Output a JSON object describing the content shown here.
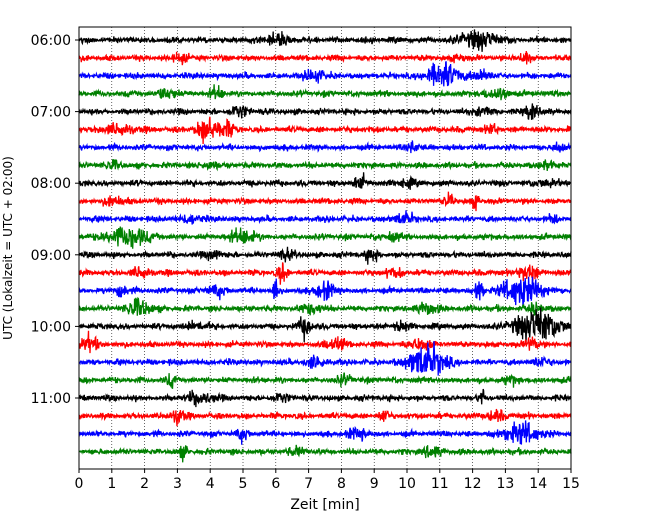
{
  "chart_data": {
    "type": "line",
    "title": "",
    "xlabel": "Zeit  [min]",
    "ylabel": "UTC (Lokalzeit = UTC + 02:00)",
    "xlim": [
      0,
      15
    ],
    "x_ticks": [
      "0",
      "1",
      "2",
      "3",
      "4",
      "5",
      "6",
      "7",
      "8",
      "9",
      "10",
      "11",
      "12",
      "13",
      "14",
      "15"
    ],
    "y_ticks": [
      "06:00",
      "07:00",
      "08:00",
      "09:00",
      "10:00",
      "11:00"
    ],
    "grid": "vertical dotted at each minute",
    "trace_colors": [
      "#000000",
      "#ff0000",
      "#0000ff",
      "#008000"
    ],
    "traces": [
      {
        "start": "06:00",
        "color": "#000000",
        "events": [
          {
            "t": 6.0,
            "a": 0.35,
            "w": 0.4
          },
          {
            "t": 12.2,
            "a": 0.5,
            "w": 0.6
          }
        ]
      },
      {
        "start": "06:15",
        "color": "#ff0000",
        "events": [
          {
            "t": 3.1,
            "a": 0.3,
            "w": 0.2
          },
          {
            "t": 13.6,
            "a": 0.35,
            "w": 0.2
          },
          {
            "t": 11.6,
            "a": 0.2,
            "w": 0.2
          }
        ]
      },
      {
        "start": "06:30",
        "color": "#0000ff",
        "events": [
          {
            "t": 7.2,
            "a": 0.35,
            "w": 0.3
          },
          {
            "t": 11.1,
            "a": 0.75,
            "w": 0.5
          },
          {
            "t": 12.3,
            "a": 0.3,
            "w": 0.3
          }
        ]
      },
      {
        "start": "06:45",
        "color": "#008000",
        "events": [
          {
            "t": 2.7,
            "a": 0.3,
            "w": 0.3
          },
          {
            "t": 4.2,
            "a": 0.35,
            "w": 0.2
          },
          {
            "t": 12.9,
            "a": 0.3,
            "w": 0.2
          },
          {
            "t": 12.5,
            "a": 0.25,
            "w": 0.2
          }
        ]
      },
      {
        "start": "07:00",
        "color": "#000000",
        "events": [
          {
            "t": 4.9,
            "a": 0.35,
            "w": 0.3
          },
          {
            "t": 13.8,
            "a": 0.45,
            "w": 0.2
          },
          {
            "t": 12.3,
            "a": 0.25,
            "w": 0.3
          }
        ]
      },
      {
        "start": "07:15",
        "color": "#ff0000",
        "events": [
          {
            "t": 3.9,
            "a": 0.8,
            "w": 0.3
          },
          {
            "t": 4.5,
            "a": 0.5,
            "w": 0.2
          },
          {
            "t": 1.2,
            "a": 0.3,
            "w": 0.5
          },
          {
            "t": 12.6,
            "a": 0.35,
            "w": 0.15
          }
        ]
      },
      {
        "start": "07:30",
        "color": "#0000ff",
        "events": [
          {
            "t": 10.2,
            "a": 0.35,
            "w": 0.15
          },
          {
            "t": 14.6,
            "a": 0.35,
            "w": 0.15
          }
        ]
      },
      {
        "start": "07:45",
        "color": "#008000",
        "events": [
          {
            "t": 14.3,
            "a": 0.35,
            "w": 0.2
          },
          {
            "t": 4.0,
            "a": 0.25,
            "w": 0.2
          },
          {
            "t": 1.0,
            "a": 0.2,
            "w": 0.3
          }
        ]
      },
      {
        "start": "08:00",
        "color": "#000000",
        "events": [
          {
            "t": 8.6,
            "a": 0.4,
            "w": 0.2
          },
          {
            "t": 10.0,
            "a": 0.25,
            "w": 0.2
          },
          {
            "t": 14.2,
            "a": 0.2,
            "w": 0.3
          }
        ]
      },
      {
        "start": "08:15",
        "color": "#ff0000",
        "events": [
          {
            "t": 11.3,
            "a": 0.35,
            "w": 0.15
          },
          {
            "t": 12.1,
            "a": 0.35,
            "w": 0.15
          },
          {
            "t": 1.1,
            "a": 0.25,
            "w": 0.3
          }
        ]
      },
      {
        "start": "08:30",
        "color": "#0000ff",
        "events": [
          {
            "t": 9.9,
            "a": 0.35,
            "w": 0.3
          },
          {
            "t": 3.4,
            "a": 0.25,
            "w": 0.3
          },
          {
            "t": 14.5,
            "a": 0.2,
            "w": 0.2
          }
        ]
      },
      {
        "start": "08:45",
        "color": "#008000",
        "events": [
          {
            "t": 1.5,
            "a": 0.6,
            "w": 0.6
          },
          {
            "t": 5.0,
            "a": 0.4,
            "w": 0.4
          },
          {
            "t": 9.5,
            "a": 0.2,
            "w": 0.3
          }
        ]
      },
      {
        "start": "09:00",
        "color": "#000000",
        "events": [
          {
            "t": 4.1,
            "a": 0.3,
            "w": 0.2
          },
          {
            "t": 8.9,
            "a": 0.35,
            "w": 0.2
          },
          {
            "t": 6.3,
            "a": 0.25,
            "w": 0.3
          }
        ]
      },
      {
        "start": "09:15",
        "color": "#ff0000",
        "events": [
          {
            "t": 6.2,
            "a": 0.5,
            "w": 0.15
          },
          {
            "t": 13.7,
            "a": 0.45,
            "w": 0.3
          },
          {
            "t": 1.9,
            "a": 0.3,
            "w": 0.3
          },
          {
            "t": 9.6,
            "a": 0.25,
            "w": 0.3
          }
        ]
      },
      {
        "start": "09:30",
        "color": "#0000ff",
        "events": [
          {
            "t": 6.0,
            "a": 0.9,
            "w": 0.1
          },
          {
            "t": 7.5,
            "a": 0.45,
            "w": 0.3
          },
          {
            "t": 12.2,
            "a": 0.9,
            "w": 0.1
          },
          {
            "t": 13.5,
            "a": 0.85,
            "w": 0.6
          },
          {
            "t": 1.3,
            "a": 0.3,
            "w": 0.2
          },
          {
            "t": 4.2,
            "a": 0.3,
            "w": 0.3
          }
        ]
      },
      {
        "start": "09:45",
        "color": "#008000",
        "events": [
          {
            "t": 1.8,
            "a": 0.5,
            "w": 0.4
          },
          {
            "t": 7.1,
            "a": 0.3,
            "w": 0.3
          },
          {
            "t": 10.6,
            "a": 0.35,
            "w": 0.3
          },
          {
            "t": 13.9,
            "a": 0.3,
            "w": 0.2
          }
        ]
      },
      {
        "start": "10:00",
        "color": "#000000",
        "events": [
          {
            "t": 6.9,
            "a": 0.55,
            "w": 0.2
          },
          {
            "t": 9.8,
            "a": 0.35,
            "w": 0.2
          },
          {
            "t": 14.0,
            "a": 1.0,
            "w": 0.7
          },
          {
            "t": 3.6,
            "a": 0.25,
            "w": 0.3
          }
        ]
      },
      {
        "start": "10:15",
        "color": "#ff0000",
        "events": [
          {
            "t": 0.3,
            "a": 0.45,
            "w": 0.25
          },
          {
            "t": 7.8,
            "a": 0.3,
            "w": 0.3
          },
          {
            "t": 10.4,
            "a": 0.35,
            "w": 0.3
          },
          {
            "t": 13.8,
            "a": 0.35,
            "w": 0.2
          }
        ]
      },
      {
        "start": "10:30",
        "color": "#0000ff",
        "events": [
          {
            "t": 10.6,
            "a": 1.0,
            "w": 0.55
          },
          {
            "t": 7.2,
            "a": 0.3,
            "w": 0.3
          },
          {
            "t": 14.1,
            "a": 0.25,
            "w": 0.3
          }
        ]
      },
      {
        "start": "10:45",
        "color": "#008000",
        "events": [
          {
            "t": 2.8,
            "a": 0.35,
            "w": 0.15
          },
          {
            "t": 8.1,
            "a": 0.3,
            "w": 0.2
          },
          {
            "t": 13.2,
            "a": 0.25,
            "w": 0.2
          }
        ]
      },
      {
        "start": "11:00",
        "color": "#000000",
        "events": [
          {
            "t": 3.7,
            "a": 0.35,
            "w": 0.4
          },
          {
            "t": 12.3,
            "a": 0.6,
            "w": 0.08
          },
          {
            "t": 6.2,
            "a": 0.25,
            "w": 0.3
          }
        ]
      },
      {
        "start": "11:15",
        "color": "#ff0000",
        "events": [
          {
            "t": 3.0,
            "a": 0.4,
            "w": 0.2
          },
          {
            "t": 9.3,
            "a": 0.35,
            "w": 0.15
          },
          {
            "t": 12.7,
            "a": 0.25,
            "w": 0.3
          }
        ]
      },
      {
        "start": "11:30",
        "color": "#0000ff",
        "events": [
          {
            "t": 5.0,
            "a": 0.35,
            "w": 0.2
          },
          {
            "t": 13.5,
            "a": 0.6,
            "w": 0.55
          },
          {
            "t": 8.5,
            "a": 0.3,
            "w": 0.3
          }
        ]
      },
      {
        "start": "11:45",
        "color": "#008000",
        "events": [
          {
            "t": 3.2,
            "a": 0.35,
            "w": 0.15
          },
          {
            "t": 10.8,
            "a": 0.3,
            "w": 0.3
          },
          {
            "t": 6.7,
            "a": 0.2,
            "w": 0.3
          }
        ]
      }
    ]
  }
}
